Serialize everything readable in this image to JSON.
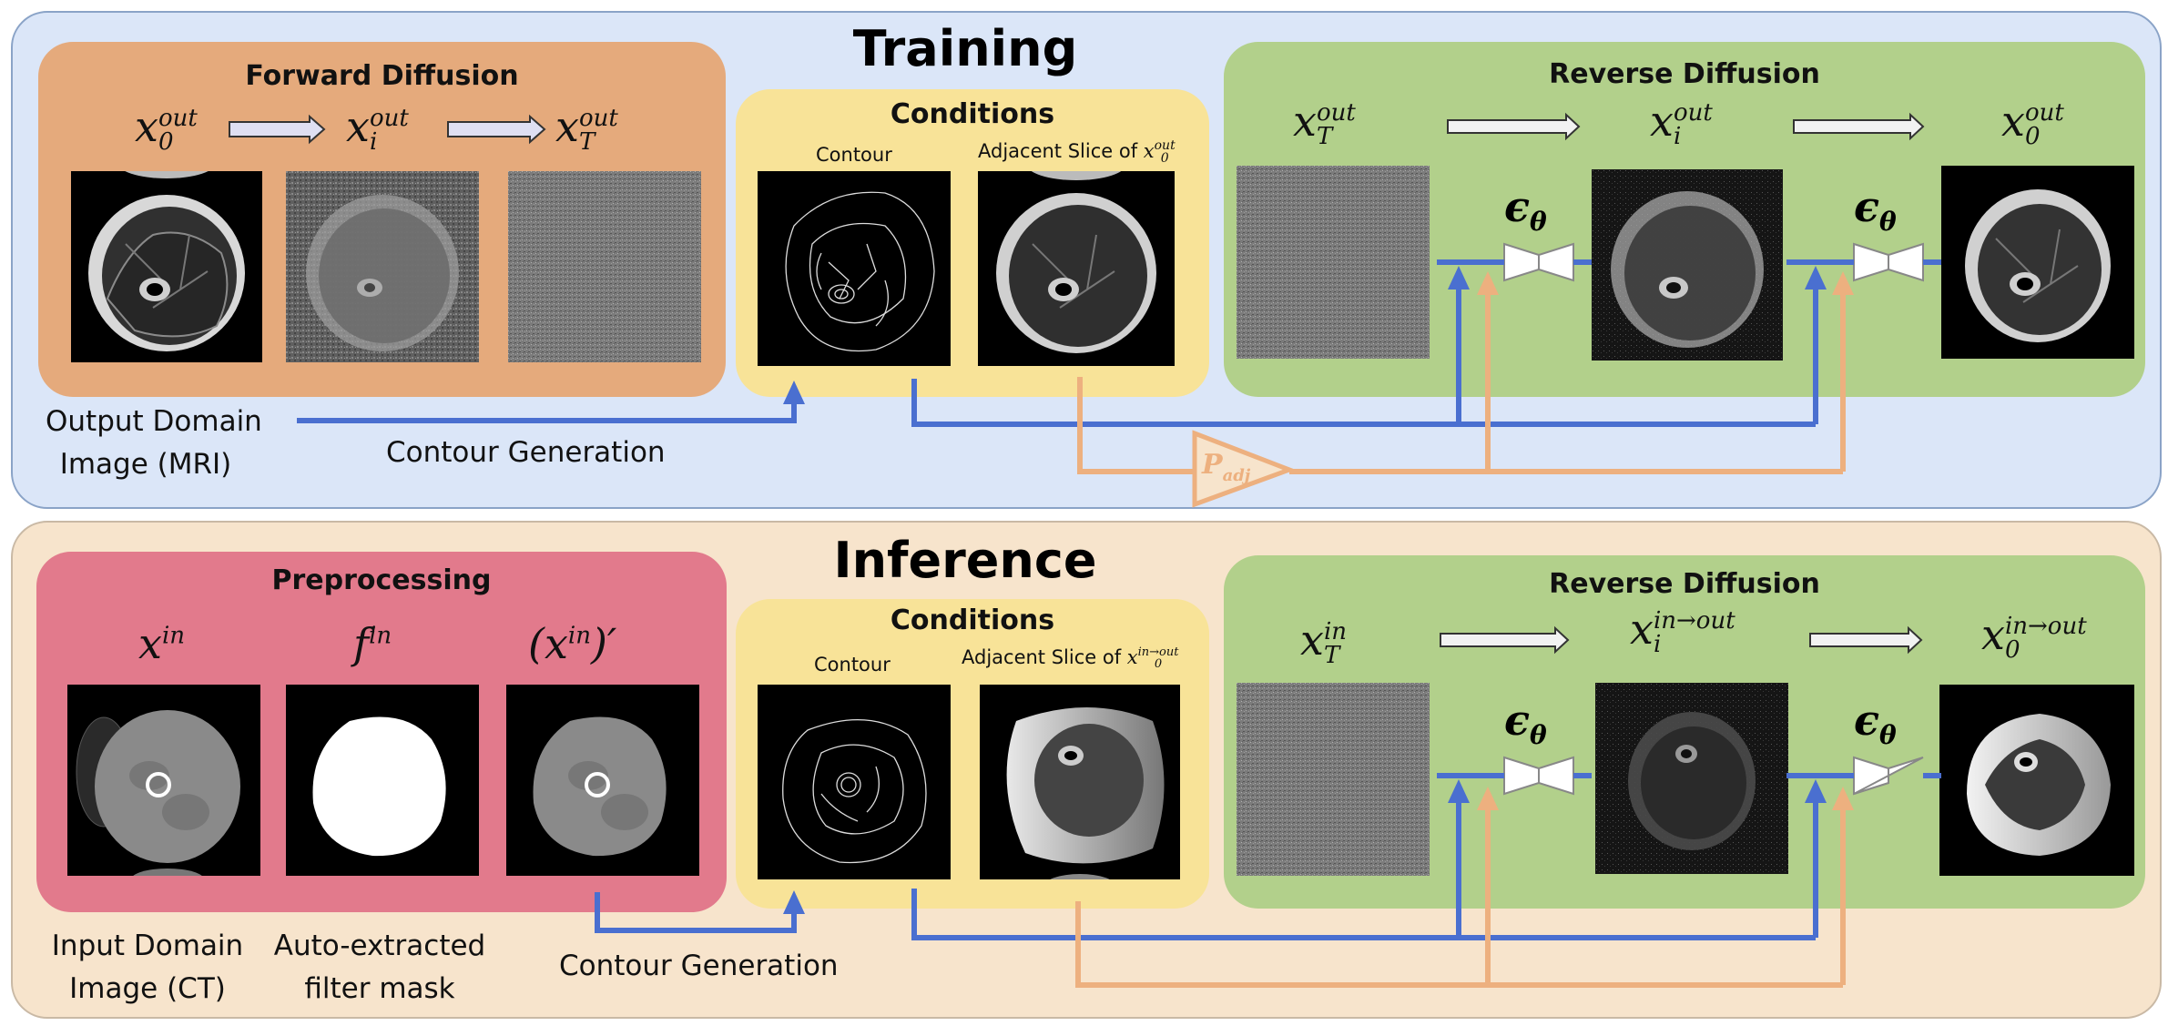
{
  "training": {
    "title": "Training",
    "forward": {
      "title": "Forward Diffusion",
      "sym0": {
        "base": "x",
        "sup": "out",
        "sub": "0"
      },
      "symi": {
        "base": "x",
        "sup": "out",
        "sub": "i"
      },
      "symT": {
        "base": "x",
        "sup": "out",
        "sub": "T"
      }
    },
    "conditions": {
      "title": "Conditions",
      "contour_label": "Contour",
      "adjacent_label": "Adjacent Slice of ",
      "adjacent_sym": {
        "base": "x",
        "sup": "out",
        "sub": "0"
      }
    },
    "reverse": {
      "title": "Reverse Diffusion",
      "symT": {
        "base": "x",
        "sup": "out",
        "sub": "T"
      },
      "symi": {
        "base": "x",
        "sup": "out",
        "sub": "i"
      },
      "sym0": {
        "base": "x",
        "sup": "out",
        "sub": "0"
      },
      "eps": "ϵ",
      "eps_sub": "θ"
    },
    "caption_output": "Output Domain\nImage (MRI)",
    "caption_contour": "Contour Generation",
    "padj": {
      "base": "P",
      "sub": "adj"
    }
  },
  "inference": {
    "title": "Inference",
    "preprocessing": {
      "title": "Preprocessing",
      "sym_x": {
        "base": "x",
        "sup": "in"
      },
      "sym_f": {
        "base": "f",
        "sup": "in"
      },
      "sym_xp": {
        "base": "(x",
        "sup": "in",
        "tail": ")′"
      }
    },
    "conditions": {
      "title": "Conditions",
      "contour_label": "Contour",
      "adjacent_label": "Adjacent Slice of ",
      "adjacent_sym": {
        "base": "x",
        "sup": "in→out",
        "sub": "0"
      }
    },
    "reverse": {
      "title": "Reverse Diffusion",
      "symT": {
        "base": "x",
        "sup": "in",
        "sub": "T"
      },
      "symi": {
        "base": "x",
        "sup": "in→out",
        "sub": "i"
      },
      "sym0": {
        "base": "x",
        "sup": "in→out",
        "sub": "0"
      },
      "eps": "ϵ",
      "eps_sub": "θ"
    },
    "caption_input": "Input Domain\nImage (CT)",
    "caption_mask": "Auto-extracted\nfilter mask",
    "caption_contour": "Contour Generation"
  },
  "colors": {
    "blue_arrow": "#4a6fd0",
    "orange_arrow": "#edb07f",
    "training_bg": "#dbe6f8",
    "inference_bg": "#f7e4cc",
    "forward_bg": "#e5aa7c",
    "conditions_bg": "#f8e398",
    "reverse_bg": "#b2d08b",
    "preprocessing_bg": "#e27a8c"
  }
}
